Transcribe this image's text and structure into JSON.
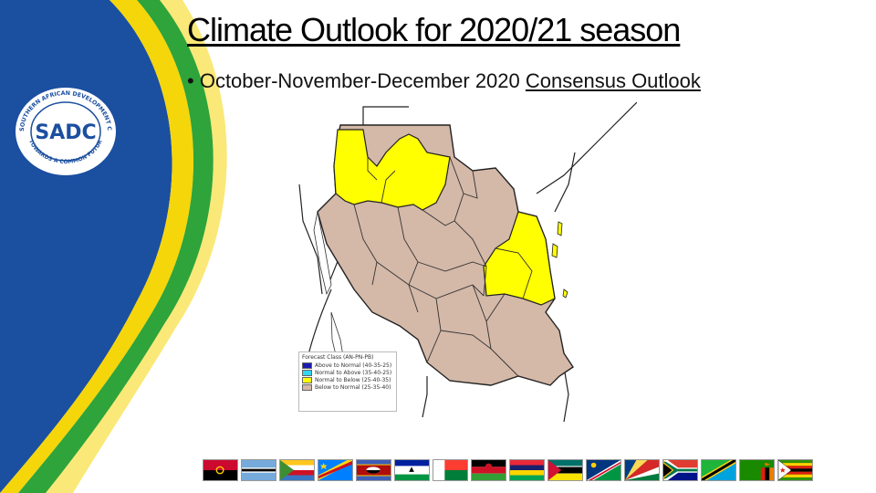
{
  "slide": {
    "title": "Climate Outlook for 2020/21 season",
    "bullet_marker": "•",
    "bullet_main": "October-November-December 2020",
    "bullet_underlined": "Consensus Outlook"
  },
  "logo": {
    "ring_text": "SOUTHERN AFRICAN DEVELOPMENT COMMUNITY",
    "bottom_text": "TOWARDS A COMMON FUTURE",
    "mark": "SADC"
  },
  "legend": {
    "title": "Forecast Class (AN-PN-PB)",
    "items": [
      {
        "label": "Above to Normal (40-35-25)",
        "color": "#1a1ab0"
      },
      {
        "label": "Normal to Above (35-40-25)",
        "color": "#33d6f0"
      },
      {
        "label": "Normal to Below (25-40-35)",
        "color": "#ffff00"
      },
      {
        "label": "Below to Normal (25-35-40)",
        "color": "#d4b8a8"
      }
    ]
  },
  "colors": {
    "map_below": "#d4b8a8",
    "map_normal_below": "#ffff00",
    "sadc_blue": "#1b4fa0",
    "sadc_green": "#2ea43a",
    "sadc_yellow": "#f5d60a"
  },
  "flags": [
    "angola-flag",
    "botswana-flag",
    "comoros-flag",
    "drc-flag",
    "eswatini-flag",
    "lesotho-flag",
    "madagascar-flag",
    "malawi-flag",
    "mauritius-flag",
    "mozambique-flag",
    "namibia-flag",
    "seychelles-flag",
    "south-africa-flag",
    "tanzania-flag",
    "zambia-flag",
    "zimbabwe-flag"
  ]
}
